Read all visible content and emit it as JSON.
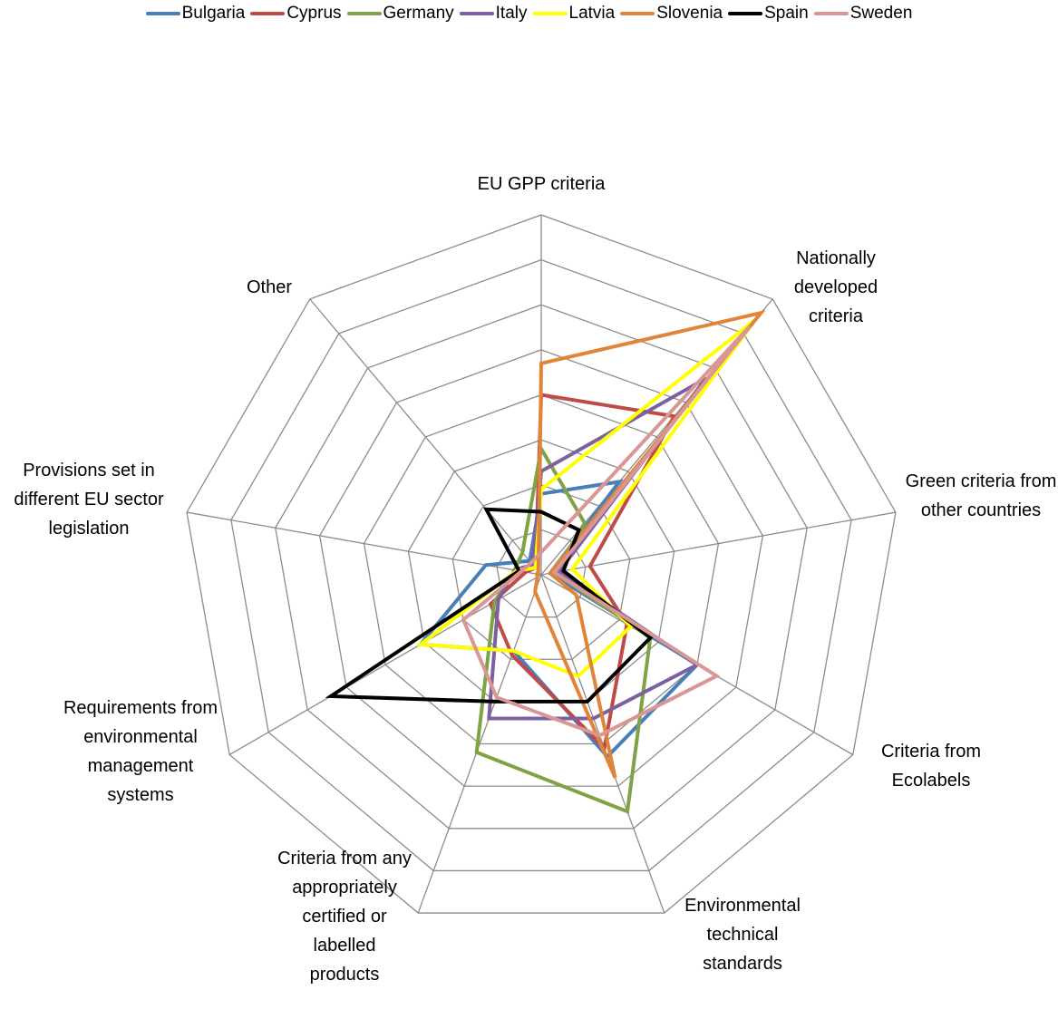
{
  "chart_data": {
    "type": "radar",
    "categories": [
      "EU GPP criteria",
      "Nationally developed criteria",
      "Green criteria from other countries",
      "Criteria from Ecolabels",
      "Environmental technical standards",
      "Criteria from any appropriately certified or labelled products",
      "Requirements from environmental management systems",
      "Provisions set in different EU sector legislation",
      "Other"
    ],
    "rlim": [
      0,
      8
    ],
    "rticks": [
      1,
      2,
      3,
      4,
      5,
      6,
      7,
      8
    ],
    "grid": true,
    "legend": "top",
    "series": [
      {
        "name": "Bulgaria",
        "color": "#4a7ebb",
        "values": [
          1.8,
          2.7,
          0.2,
          4.0,
          4.3,
          1.8,
          3.1,
          1.25,
          0.4
        ]
      },
      {
        "name": "Cyprus",
        "color": "#be4b48",
        "values": [
          4.0,
          4.6,
          1.1,
          2.2,
          4.1,
          1.9,
          1.3,
          0.35,
          0.2
        ]
      },
      {
        "name": "Germany",
        "color": "#7ea345",
        "values": [
          2.8,
          1.5,
          0.3,
          2.8,
          5.6,
          4.2,
          1.2,
          0.6,
          0.65
        ]
      },
      {
        "name": "Italy",
        "color": "#7d60a0",
        "values": [
          2.3,
          5.7,
          0.4,
          4.0,
          3.4,
          3.4,
          1.1,
          0.6,
          0.3
        ]
      },
      {
        "name": "Latvia",
        "color": "#ffff00",
        "values": [
          1.9,
          7.4,
          0.7,
          2.3,
          2.4,
          1.8,
          3.1,
          0.55,
          0.2
        ]
      },
      {
        "name": "Slovenia",
        "color": "#e0843a",
        "values": [
          4.7,
          7.6,
          0.2,
          0.9,
          4.8,
          0.4,
          0.1,
          0.1,
          0.1
        ]
      },
      {
        "name": "Spain",
        "color": "#000000",
        "values": [
          1.4,
          1.3,
          0.5,
          2.8,
          3.0,
          3.0,
          5.4,
          0.5,
          1.9
        ]
      },
      {
        "name": "Sweden",
        "color": "#d99694",
        "values": [
          0.5,
          7.2,
          0.3,
          4.5,
          3.8,
          2.9,
          2.0,
          0.45,
          0.35
        ]
      }
    ]
  }
}
